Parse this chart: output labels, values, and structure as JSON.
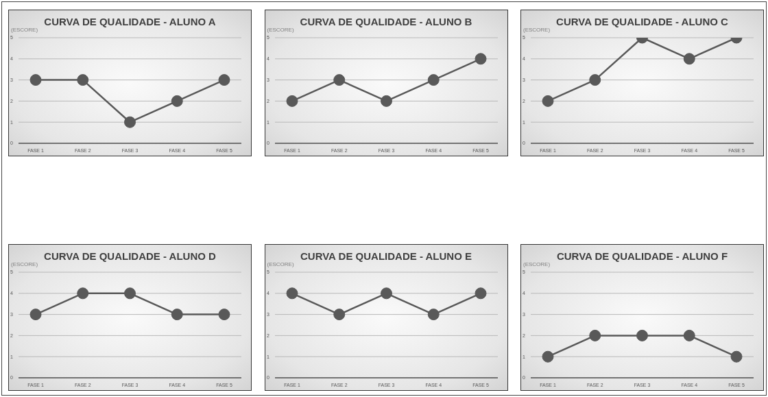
{
  "chart_data": [
    {
      "type": "line",
      "title": "CURVA DE QUALIDADE - ALUNO A",
      "ylabel": "(ESCORE)",
      "categories": [
        "FASE 1",
        "FASE 2",
        "FASE 3",
        "FASE 4",
        "FASE 5"
      ],
      "values": [
        3,
        3,
        1,
        2,
        3
      ],
      "color": "#595959",
      "ylim": [
        0,
        5
      ],
      "yticks": [
        0,
        1,
        2,
        3,
        4,
        5
      ],
      "grid": "y",
      "marker": "circle"
    },
    {
      "type": "line",
      "title": "CURVA DE QUALIDADE - ALUNO B",
      "ylabel": "(ESCORE)",
      "categories": [
        "FASE 1",
        "FASE 2",
        "FASE 3",
        "FASE 4",
        "FASE 5"
      ],
      "values": [
        2,
        3,
        2,
        3,
        4
      ],
      "color": "#595959",
      "ylim": [
        0,
        5
      ],
      "yticks": [
        0,
        1,
        2,
        3,
        4,
        5
      ],
      "grid": "y",
      "marker": "circle"
    },
    {
      "type": "line",
      "title": "CURVA DE QUALIDADE - ALUNO C",
      "ylabel": "(ESCORE)",
      "categories": [
        "FASE 1",
        "FASE 2",
        "FASE 3",
        "FASE 4",
        "FASE 5"
      ],
      "values": [
        2,
        3,
        5,
        4,
        5
      ],
      "color": "#595959",
      "ylim": [
        0,
        5
      ],
      "yticks": [
        0,
        1,
        2,
        3,
        4,
        5
      ],
      "grid": "y",
      "marker": "circle"
    },
    {
      "type": "line",
      "title": "CURVA DE QUALIDADE - ALUNO D",
      "ylabel": "(ESCORE)",
      "categories": [
        "FASE 1",
        "FASE 2",
        "FASE 3",
        "FASE 4",
        "FASE 5"
      ],
      "values": [
        3,
        4,
        4,
        3,
        3
      ],
      "color": "#595959",
      "ylim": [
        0,
        5
      ],
      "yticks": [
        0,
        1,
        2,
        3,
        4,
        5
      ],
      "grid": "y",
      "marker": "circle"
    },
    {
      "type": "line",
      "title": "CURVA DE QUALIDADE - ALUNO E",
      "ylabel": "(ESCORE)",
      "categories": [
        "FASE 1",
        "FASE 2",
        "FASE 3",
        "FASE 4",
        "FASE 5"
      ],
      "values": [
        4,
        3,
        4,
        3,
        4
      ],
      "color": "#595959",
      "ylim": [
        0,
        5
      ],
      "yticks": [
        0,
        1,
        2,
        3,
        4,
        5
      ],
      "grid": "y",
      "marker": "circle"
    },
    {
      "type": "line",
      "title": "CURVA DE QUALIDADE - ALUNO F",
      "ylabel": "(ESCORE)",
      "categories": [
        "FASE 1",
        "FASE 2",
        "FASE 3",
        "FASE 4",
        "FASE 5"
      ],
      "values": [
        1,
        2,
        2,
        2,
        1
      ],
      "color": "#595959",
      "ylim": [
        0,
        5
      ],
      "yticks": [
        0,
        1,
        2,
        3,
        4,
        5
      ],
      "grid": "y",
      "marker": "circle"
    }
  ]
}
